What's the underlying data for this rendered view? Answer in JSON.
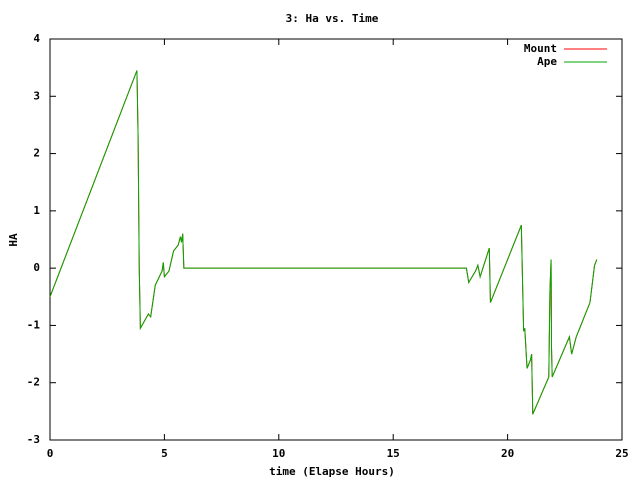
{
  "chart_data": {
    "type": "line",
    "title": "3: Ha vs. Time",
    "x_label": "time (Elapse Hours)",
    "y_label": "HA",
    "x": [
      0,
      3.8,
      3.85,
      3.9,
      3.95,
      4.3,
      4.4,
      4.6,
      4.9,
      4.95,
      5.0,
      5.2,
      5.4,
      5.5,
      5.6,
      5.7,
      5.75,
      5.8,
      5.85,
      18.2,
      18.3,
      18.6,
      18.7,
      18.8,
      19.2,
      19.25,
      20.6,
      20.7,
      20.75,
      20.85,
      21.0,
      21.05,
      21.1,
      21.8,
      21.85,
      21.9,
      21.92,
      21.95,
      22.7,
      22.8,
      23.0,
      23.6,
      23.8,
      23.9
    ],
    "series": [
      {
        "name": "Mount",
        "color": "#ff0000",
        "values": [
          -0.5,
          3.45,
          2.3,
          0,
          -1.05,
          -0.8,
          -0.85,
          -0.3,
          -0.05,
          0.1,
          -0.15,
          -0.05,
          0.3,
          0.35,
          0.4,
          0.55,
          0.45,
          0.6,
          0,
          0,
          -0.25,
          -0.05,
          0.05,
          -0.15,
          0.35,
          -0.6,
          0.75,
          -1.1,
          -1.05,
          -1.75,
          -1.6,
          -1.5,
          -2.55,
          -1.9,
          -0.4,
          0.15,
          -1.4,
          -1.9,
          -1.2,
          -1.5,
          -1.2,
          -0.6,
          0.05,
          0.15
        ]
      },
      {
        "name": "Ape",
        "color": "#00aa00",
        "values": [
          -0.5,
          3.45,
          2.3,
          0,
          -1.05,
          -0.8,
          -0.85,
          -0.3,
          -0.05,
          0.1,
          -0.15,
          -0.05,
          0.3,
          0.35,
          0.4,
          0.55,
          0.45,
          0.6,
          0,
          0,
          -0.25,
          -0.05,
          0.05,
          -0.15,
          0.35,
          -0.6,
          0.75,
          -1.1,
          -1.05,
          -1.75,
          -1.6,
          -1.5,
          -2.55,
          -1.9,
          -0.4,
          0.15,
          -1.4,
          -1.9,
          -1.2,
          -1.5,
          -1.2,
          -0.6,
          0.05,
          0.15
        ]
      }
    ],
    "xlim": [
      0,
      25
    ],
    "xticks": [
      0,
      5,
      10,
      15,
      20,
      25
    ],
    "ylim": [
      -3,
      4
    ],
    "yticks": [
      -3,
      -2,
      -1,
      0,
      1,
      2,
      3,
      4
    ],
    "grid": false,
    "legend": "top-right"
  }
}
